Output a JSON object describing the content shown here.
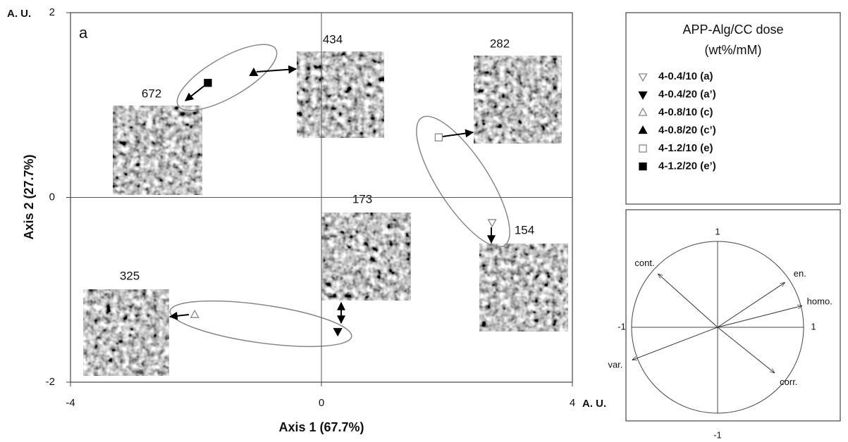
{
  "chart_data": [
    {
      "type": "scatter",
      "panel_label": "a",
      "x_label": "Axis 1 (67.7%)",
      "y_label": "Axis 2 (27.7%)",
      "x_unit": "A. U.",
      "y_unit": "A. U.",
      "xlim": [
        -4,
        4
      ],
      "ylim": [
        -2,
        2
      ],
      "xticks": [
        -4,
        0,
        4
      ],
      "yticks": [
        -2,
        0,
        2
      ],
      "grid": true,
      "legend_title": [
        "APP-Alg/CC dose",
        "(wt%/mM)"
      ],
      "legend": "outside-right",
      "image_labels": [
        "672",
        "434",
        "282",
        "173",
        "154",
        "325"
      ],
      "series": [
        {
          "name": "4-0.4/10 (a)",
          "marker": "triangle-down",
          "filled": false,
          "color": "#888888",
          "x": [
            2.72
          ],
          "y": [
            -0.27
          ]
        },
        {
          "name": "4-0.4/20 (a’)",
          "marker": "triangle-down",
          "filled": true,
          "color": "#000000",
          "x": [
            0.26
          ],
          "y": [
            -1.45
          ]
        },
        {
          "name": "4-0.8/10 (c)",
          "marker": "triangle-up",
          "filled": false,
          "color": "#888888",
          "x": [
            -2.02
          ],
          "y": [
            -1.27
          ]
        },
        {
          "name": "4-0.8/20 (c’)",
          "marker": "triangle-up",
          "filled": true,
          "color": "#000000",
          "x": [
            -1.08
          ],
          "y": [
            1.35
          ]
        },
        {
          "name": "4-1.2/10 (e)",
          "marker": "square",
          "filled": false,
          "color": "#888888",
          "x": [
            1.87
          ],
          "y": [
            0.65
          ]
        },
        {
          "name": "4-1.2/20 (e’)",
          "marker": "square",
          "filled": true,
          "color": "#000000",
          "x": [
            -1.81
          ],
          "y": [
            1.24
          ]
        }
      ]
    },
    {
      "type": "vector",
      "xlim": [
        -1,
        1
      ],
      "ylim": [
        -1,
        1
      ],
      "xticks": [
        -1,
        1
      ],
      "yticks": [
        -1,
        1
      ],
      "series": [
        {
          "name": "cont.",
          "x": [
            -0.69
          ],
          "y": [
            0.62
          ]
        },
        {
          "name": "en.",
          "x": [
            0.78
          ],
          "y": [
            0.52
          ]
        },
        {
          "name": "homo.",
          "x": [
            0.98
          ],
          "y": [
            0.25
          ]
        },
        {
          "name": "var.",
          "x": [
            -0.99
          ],
          "y": [
            -0.38
          ]
        },
        {
          "name": "corr.",
          "x": [
            0.66
          ],
          "y": [
            -0.53
          ]
        }
      ]
    }
  ]
}
